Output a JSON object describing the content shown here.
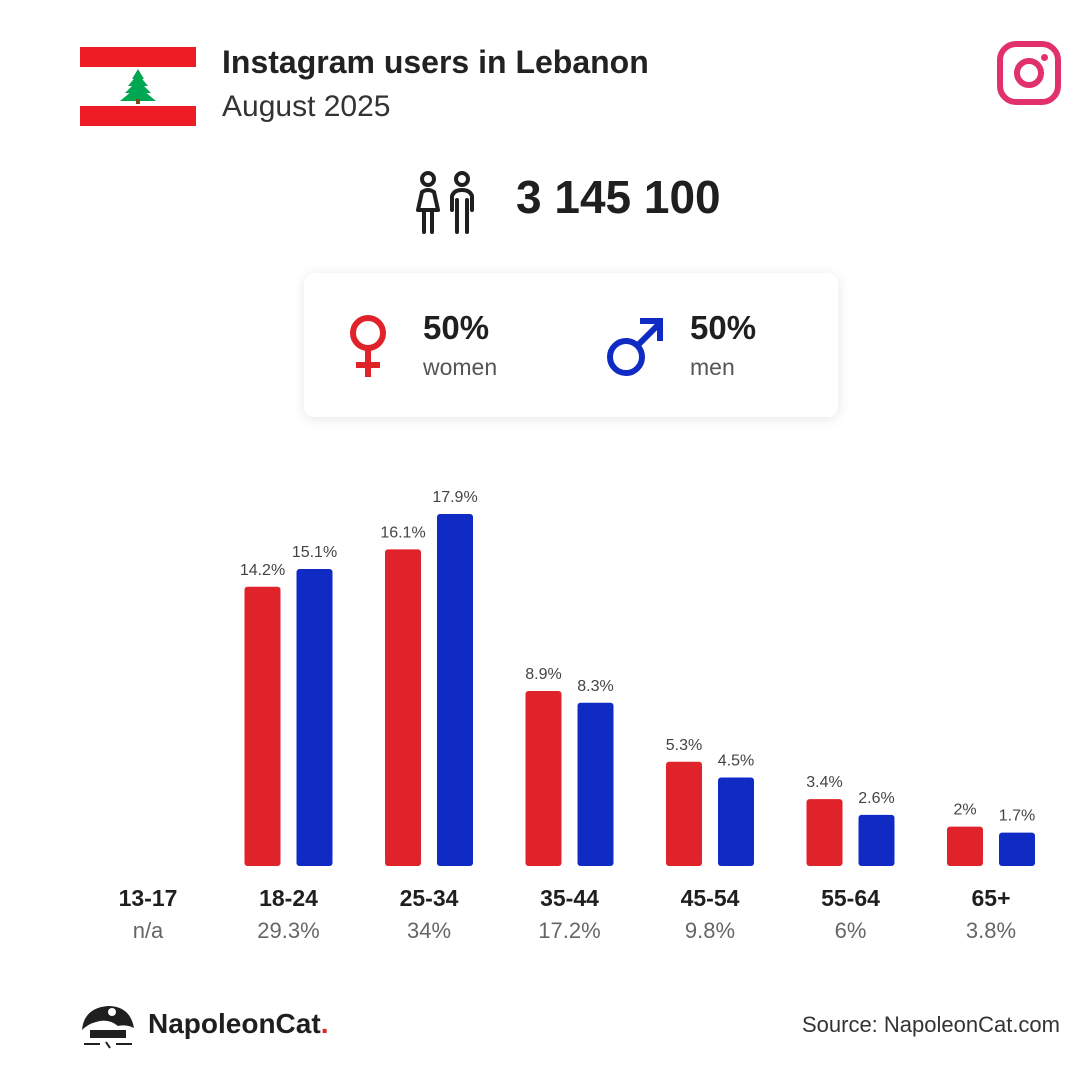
{
  "header": {
    "title": "Instagram users in Lebanon",
    "subtitle": "August 2025",
    "flag_icon": "lebanon-flag-icon",
    "platform_icon": "instagram-icon",
    "platform_color": "#e1306c"
  },
  "summary": {
    "total_users": "3 145 100",
    "people_icon": "people-icon"
  },
  "gender": {
    "women_pct": "50%",
    "women_label": "women",
    "men_pct": "50%",
    "men_label": "men",
    "women_color": "#e0222b",
    "men_color": "#0f2bc4"
  },
  "chart_data": {
    "type": "bar",
    "categories": [
      "13-17",
      "18-24",
      "25-34",
      "35-44",
      "45-54",
      "55-64",
      "65+"
    ],
    "category_totals": [
      "n/a",
      "29.3%",
      "34%",
      "17.2%",
      "9.8%",
      "6%",
      "3.8%"
    ],
    "series": [
      {
        "key": "women",
        "color": "#e0222b",
        "values": [
          null,
          14.2,
          16.1,
          8.9,
          5.3,
          3.4,
          2
        ],
        "labels": [
          "",
          "14.2%",
          "16.1%",
          "8.9%",
          "5.3%",
          "3.4%",
          "2%"
        ]
      },
      {
        "key": "men",
        "color": "#0f2bc4",
        "values": [
          null,
          15.1,
          17.9,
          8.3,
          4.5,
          2.6,
          1.7
        ],
        "labels": [
          "",
          "15.1%",
          "17.9%",
          "8.3%",
          "4.5%",
          "2.6%",
          "1.7%"
        ]
      }
    ],
    "ylim": [
      0,
      17.9
    ],
    "grid": false,
    "xlabel": "",
    "ylabel": ""
  },
  "footer": {
    "brand": "NapoleonCat",
    "brand_suffix": ".",
    "source": "Source: NapoleonCat.com",
    "brand_icon": "napoleoncat-logo-icon"
  }
}
